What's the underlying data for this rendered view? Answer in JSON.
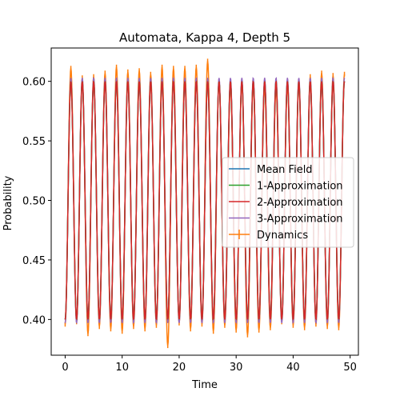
{
  "chart_data": {
    "type": "line",
    "title": "Automata, Kappa 4, Depth 5",
    "xlabel": "Time",
    "ylabel": "Probability",
    "xlim": [
      -2.45,
      51.45
    ],
    "ylim": [
      0.37,
      0.628
    ],
    "xticks": [
      "0",
      "10",
      "20",
      "30",
      "40",
      "50"
    ],
    "yticks": [
      "0.40",
      "0.45",
      "0.50",
      "0.55",
      "0.60"
    ],
    "grid": false,
    "legend_position": "center-right",
    "oscillation": {
      "t_start": 0.0,
      "t_end": 49.0,
      "period": 2.0,
      "min": 0.4,
      "max": 0.6
    },
    "series": [
      {
        "name": "Mean Field",
        "color": "#1f77b4"
      },
      {
        "name": "1-Approximation",
        "color": "#2ca02c"
      },
      {
        "name": "2-Approximation",
        "color": "#d62728"
      },
      {
        "name": "3-Approximation",
        "color": "#9467bd",
        "min": 0.397,
        "max": 0.603
      },
      {
        "name": "Dynamics",
        "color": "#ff7f0e",
        "errorbar": true,
        "peaks": [
          0.611,
          0.603,
          0.604,
          0.607,
          0.612,
          0.608,
          0.609,
          0.606,
          0.612,
          0.611,
          0.611,
          0.612,
          0.617,
          0.599,
          0.596,
          0.598,
          0.597,
          0.595,
          0.594,
          0.596,
          0.598,
          0.604,
          0.607,
          0.605,
          0.606
        ],
        "troughs": [
          0.396,
          0.398,
          0.388,
          0.394,
          0.392,
          0.39,
          0.394,
          0.392,
          0.395,
          0.378,
          0.397,
          0.392,
          0.396,
          0.39,
          0.395,
          0.391,
          0.387,
          0.391,
          0.393,
          0.398,
          0.395,
          0.393,
          0.396,
          0.394,
          0.393
        ]
      }
    ]
  }
}
